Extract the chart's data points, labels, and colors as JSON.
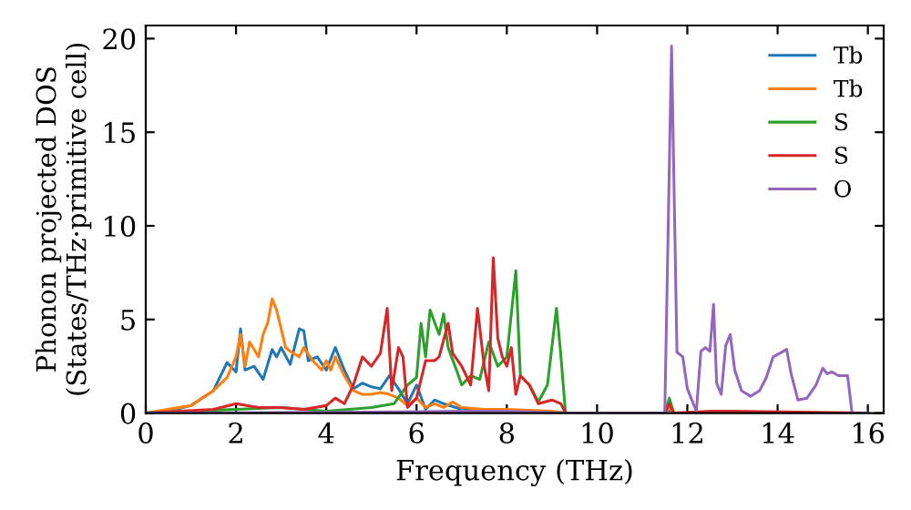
{
  "chart_data": {
    "type": "line",
    "xlabel": "Frequency (THz)",
    "ylabel": "Phonon projected DOS\n(States/THz·primitive cell)",
    "xlim": [
      0,
      16.35
    ],
    "ylim": [
      0,
      20.7
    ],
    "xticks": [
      0,
      2,
      4,
      6,
      8,
      10,
      12,
      14,
      16
    ],
    "yticks": [
      0,
      5,
      10,
      15,
      20
    ],
    "legend": "top right",
    "grid": false,
    "line_style": "solid",
    "series": [
      {
        "name": "Tb",
        "color": "#1f77b4",
        "x": [
          0,
          0.5,
          1,
          1.5,
          1.8,
          2.0,
          2.1,
          2.2,
          2.4,
          2.6,
          2.8,
          2.9,
          3.0,
          3.2,
          3.4,
          3.5,
          3.6,
          3.8,
          4.0,
          4.2,
          4.4,
          4.6,
          4.8,
          5.0,
          5.2,
          5.4,
          5.6,
          5.8,
          6.0,
          6.2,
          6.4,
          6.6,
          7.0,
          7.5,
          8.0,
          9.0,
          9.3,
          11.5,
          11.6,
          11.7,
          16.0
        ],
        "values": [
          0,
          0.1,
          0.4,
          1.2,
          2.7,
          2.2,
          4.5,
          2.3,
          2.5,
          1.8,
          3.4,
          3.0,
          3.5,
          2.6,
          4.5,
          4.4,
          2.8,
          3.0,
          2.3,
          3.5,
          2.3,
          1.3,
          1.6,
          1.4,
          1.3,
          2.0,
          1.3,
          0.5,
          1.5,
          0.2,
          0.7,
          0.5,
          0.2,
          0.1,
          0.05,
          0.05,
          0,
          0,
          0.2,
          0,
          0
        ]
      },
      {
        "name": "Tb",
        "color": "#ff7f0e",
        "x": [
          0,
          1,
          1.5,
          1.8,
          2.0,
          2.1,
          2.2,
          2.3,
          2.5,
          2.6,
          2.7,
          2.8,
          2.9,
          3.0,
          3.1,
          3.2,
          3.4,
          3.5,
          3.7,
          3.9,
          4.0,
          4.1,
          4.2,
          4.4,
          4.6,
          4.8,
          5.0,
          5.2,
          5.4,
          5.6,
          5.8,
          6.0,
          6.2,
          6.4,
          6.6,
          6.8,
          7.0,
          7.5,
          8.0,
          9.0,
          9.3,
          11.5,
          11.6,
          11.7,
          16.0
        ],
        "values": [
          0,
          0.4,
          1.2,
          1.9,
          3.0,
          4.2,
          2.5,
          3.8,
          3.0,
          4.2,
          4.8,
          6.1,
          5.5,
          4.5,
          3.5,
          3.3,
          3.0,
          3.5,
          2.8,
          2.3,
          2.8,
          2.3,
          3.0,
          2.0,
          1.2,
          1.0,
          1.0,
          1.1,
          1.0,
          0.8,
          0.4,
          0.8,
          0.3,
          0.5,
          0.3,
          0.6,
          0.3,
          0.2,
          0.2,
          0.1,
          0,
          0,
          0.3,
          0,
          0
        ]
      },
      {
        "name": "S",
        "color": "#2ca02c",
        "x": [
          0,
          2.0,
          3.0,
          4.0,
          5.0,
          5.5,
          5.8,
          6.0,
          6.1,
          6.2,
          6.3,
          6.5,
          6.6,
          6.7,
          6.9,
          7.0,
          7.2,
          7.4,
          7.6,
          7.8,
          8.0,
          8.2,
          8.3,
          8.5,
          8.7,
          8.9,
          9.1,
          9.2,
          9.3,
          11.5,
          11.6,
          11.7,
          16.0
        ],
        "values": [
          0,
          0.2,
          0.3,
          0.1,
          0.3,
          0.5,
          1.5,
          1.9,
          4.8,
          3.0,
          5.5,
          4.2,
          5.3,
          3.5,
          2.2,
          1.5,
          2.0,
          1.8,
          3.8,
          2.5,
          3.0,
          7.6,
          2.0,
          1.5,
          0.6,
          1.5,
          5.6,
          3.0,
          0,
          0,
          0.8,
          0,
          0
        ]
      },
      {
        "name": "S",
        "color": "#d62728",
        "x": [
          0,
          1.5,
          2.0,
          2.5,
          3.0,
          3.5,
          4.0,
          4.2,
          4.4,
          4.6,
          4.8,
          5.0,
          5.2,
          5.35,
          5.45,
          5.6,
          5.7,
          5.8,
          6.0,
          6.2,
          6.4,
          6.5,
          6.7,
          6.8,
          7.0,
          7.2,
          7.35,
          7.5,
          7.6,
          7.7,
          7.8,
          7.9,
          8.0,
          8.1,
          8.2,
          8.3,
          8.5,
          8.7,
          9.0,
          9.2,
          9.3,
          11.5,
          11.6,
          11.7,
          12.5,
          13.0,
          16.0
        ],
        "values": [
          0,
          0.2,
          0.5,
          0.3,
          0.3,
          0.2,
          0.4,
          0.8,
          0.5,
          1.5,
          3.0,
          2.5,
          3.2,
          5.6,
          1.2,
          3.5,
          3.0,
          0.3,
          0.8,
          2.8,
          2.8,
          3.0,
          4.8,
          3.2,
          2.5,
          1.5,
          5.6,
          2.5,
          1.2,
          8.3,
          4.0,
          3.0,
          2.5,
          3.5,
          1.0,
          2.0,
          1.5,
          0.5,
          0.7,
          0.5,
          0,
          0,
          0.5,
          0,
          0.1,
          0.1,
          0
        ]
      },
      {
        "name": "O",
        "color": "#9467bd",
        "x": [
          0,
          5.0,
          7.0,
          8.0,
          9.3,
          11.5,
          11.65,
          11.77,
          11.9,
          12.0,
          12.2,
          12.3,
          12.4,
          12.5,
          12.58,
          12.65,
          12.75,
          12.85,
          12.95,
          13.05,
          13.2,
          13.4,
          13.6,
          13.75,
          13.9,
          14.05,
          14.2,
          14.3,
          14.45,
          14.65,
          14.85,
          15.0,
          15.1,
          15.2,
          15.35,
          15.55,
          15.65,
          16.0
        ],
        "values": [
          0,
          0.05,
          0.1,
          0.1,
          0,
          0,
          19.6,
          3.25,
          3.0,
          1.3,
          0.1,
          3.3,
          3.5,
          3.3,
          5.8,
          1.6,
          1.0,
          3.6,
          4.2,
          2.3,
          1.2,
          0.9,
          1.2,
          1.9,
          3.0,
          3.2,
          3.4,
          2.1,
          0.7,
          0.8,
          1.5,
          2.4,
          2.1,
          2.2,
          2.0,
          2.0,
          0,
          0
        ]
      }
    ]
  }
}
